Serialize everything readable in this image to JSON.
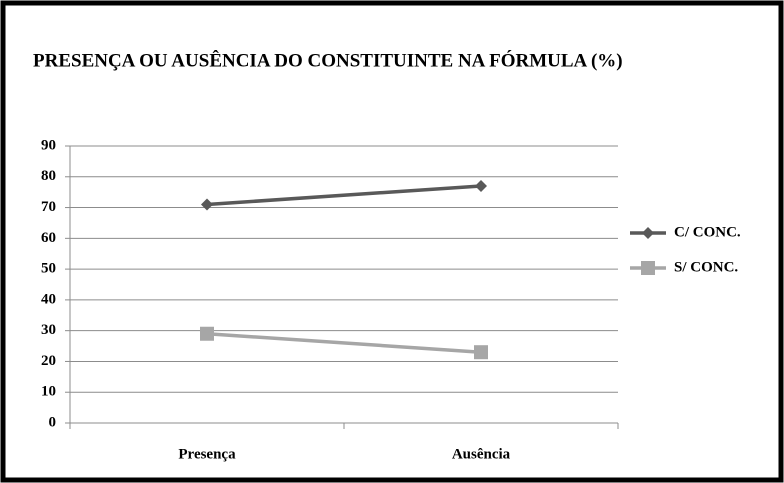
{
  "chart_data": {
    "type": "line",
    "title": "PRESENÇA OU AUSÊNCIA DO CONSTITUINTE NA FÓRMULA (%)",
    "categories": [
      "Presença",
      "Ausência"
    ],
    "series": [
      {
        "name": "C/ CONC.",
        "color": "#595959",
        "marker": "diamond",
        "values": [
          71,
          77
        ]
      },
      {
        "name": "S/ CONC.",
        "color": "#a6a6a6",
        "marker": "square",
        "values": [
          29,
          23
        ]
      }
    ],
    "ylim": [
      0,
      90
    ],
    "yticks": [
      0,
      10,
      20,
      30,
      40,
      50,
      60,
      70,
      80,
      90
    ],
    "grid": true,
    "legend": "right"
  }
}
